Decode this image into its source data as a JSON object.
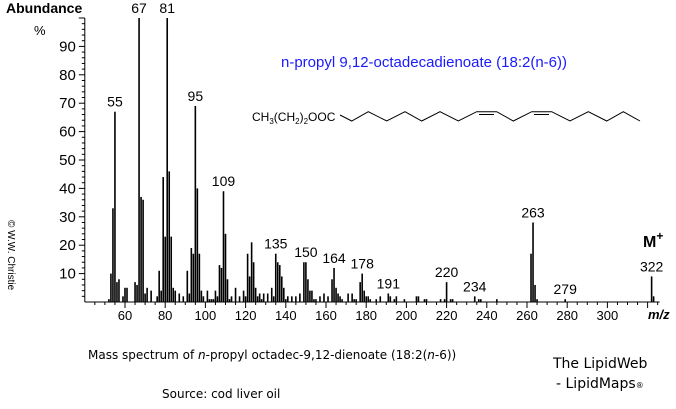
{
  "chart_data": {
    "type": "bar",
    "title": "n-propyl 9,12-octadecadienoate  (18:2(n-6))",
    "title_color": "#1a1aff",
    "ylabel": "Abundance",
    "ylabel_unit": "%",
    "xlabel": "m/z",
    "ylim": [
      0,
      100
    ],
    "xlim": [
      40,
      326
    ],
    "yticks": [
      10,
      20,
      30,
      40,
      50,
      60,
      70,
      80,
      90
    ],
    "xticks": [
      60,
      80,
      100,
      120,
      140,
      160,
      180,
      200,
      220,
      240,
      260,
      280,
      300
    ],
    "grid": false,
    "structure_label": "CH3(CH2)2OOC",
    "molecular_ion_label": "M+",
    "peak_labels": [
      55,
      67,
      81,
      95,
      109,
      135,
      150,
      164,
      178,
      191,
      220,
      234,
      263,
      279,
      322
    ],
    "peaks": [
      [
        52,
        1
      ],
      [
        53,
        10
      ],
      [
        54,
        33
      ],
      [
        55,
        67
      ],
      [
        56,
        7
      ],
      [
        57,
        8
      ],
      [
        59,
        2
      ],
      [
        60,
        5
      ],
      [
        61,
        5
      ],
      [
        65,
        7
      ],
      [
        66,
        6
      ],
      [
        67,
        100
      ],
      [
        68,
        37
      ],
      [
        69,
        36
      ],
      [
        70,
        3
      ],
      [
        71,
        5
      ],
      [
        73,
        4
      ],
      [
        76,
        2
      ],
      [
        77,
        11
      ],
      [
        78,
        4
      ],
      [
        79,
        44
      ],
      [
        80,
        23
      ],
      [
        81,
        100
      ],
      [
        82,
        46
      ],
      [
        83,
        23
      ],
      [
        84,
        5
      ],
      [
        85,
        4
      ],
      [
        87,
        3
      ],
      [
        89,
        2
      ],
      [
        91,
        11
      ],
      [
        92,
        3
      ],
      [
        93,
        19
      ],
      [
        94,
        17
      ],
      [
        95,
        69
      ],
      [
        96,
        40
      ],
      [
        97,
        17
      ],
      [
        98,
        4
      ],
      [
        99,
        2
      ],
      [
        101,
        4
      ],
      [
        102,
        1
      ],
      [
        103,
        1
      ],
      [
        104,
        1
      ],
      [
        105,
        4
      ],
      [
        106,
        2
      ],
      [
        107,
        13
      ],
      [
        108,
        12
      ],
      [
        109,
        39
      ],
      [
        110,
        24
      ],
      [
        111,
        8
      ],
      [
        112,
        1
      ],
      [
        113,
        2
      ],
      [
        115,
        5
      ],
      [
        117,
        2
      ],
      [
        119,
        4
      ],
      [
        120,
        2
      ],
      [
        121,
        17
      ],
      [
        122,
        9
      ],
      [
        123,
        21
      ],
      [
        124,
        14
      ],
      [
        125,
        5
      ],
      [
        126,
        2
      ],
      [
        127,
        3
      ],
      [
        128,
        1
      ],
      [
        129,
        3
      ],
      [
        131,
        3
      ],
      [
        133,
        5
      ],
      [
        134,
        2
      ],
      [
        135,
        17
      ],
      [
        136,
        14
      ],
      [
        137,
        13
      ],
      [
        138,
        9
      ],
      [
        139,
        5
      ],
      [
        140,
        1
      ],
      [
        141,
        2
      ],
      [
        143,
        2
      ],
      [
        145,
        2
      ],
      [
        147,
        3
      ],
      [
        149,
        14
      ],
      [
        150,
        14
      ],
      [
        151,
        8
      ],
      [
        152,
        4
      ],
      [
        153,
        4
      ],
      [
        154,
        1
      ],
      [
        155,
        1
      ],
      [
        157,
        2
      ],
      [
        159,
        3
      ],
      [
        161,
        2
      ],
      [
        163,
        8
      ],
      [
        164,
        12
      ],
      [
        165,
        5
      ],
      [
        166,
        3
      ],
      [
        167,
        2
      ],
      [
        168,
        1
      ],
      [
        171,
        3
      ],
      [
        173,
        3
      ],
      [
        174,
        1
      ],
      [
        175,
        1
      ],
      [
        177,
        7
      ],
      [
        178,
        10
      ],
      [
        179,
        4
      ],
      [
        180,
        2
      ],
      [
        181,
        2
      ],
      [
        182,
        1
      ],
      [
        185,
        1
      ],
      [
        187,
        2
      ],
      [
        191,
        3
      ],
      [
        192,
        2
      ],
      [
        194,
        1
      ],
      [
        195,
        2
      ],
      [
        199,
        1
      ],
      [
        205,
        2
      ],
      [
        206,
        2
      ],
      [
        209,
        1
      ],
      [
        210,
        1
      ],
      [
        217,
        1
      ],
      [
        219,
        1
      ],
      [
        220,
        7
      ],
      [
        222,
        1
      ],
      [
        223,
        1
      ],
      [
        234,
        2
      ],
      [
        236,
        1
      ],
      [
        237,
        1
      ],
      [
        245,
        1
      ],
      [
        262,
        17
      ],
      [
        263,
        28
      ],
      [
        264,
        6
      ],
      [
        265,
        1
      ],
      [
        279,
        1
      ],
      [
        322,
        9
      ],
      [
        323,
        2
      ]
    ]
  },
  "copyright": "© W.W. Christie",
  "caption": {
    "prefix": "Mass spectrum of ",
    "italic1": "n",
    "middle": "-propyl octadec-9,12-dienoate (18:2(",
    "italic2": "n",
    "suffix": "-6))"
  },
  "source": "Source: cod liver oil",
  "brand": {
    "line1": "The LipidWeb",
    "line2": "- LipidMaps",
    "mark": "®"
  }
}
